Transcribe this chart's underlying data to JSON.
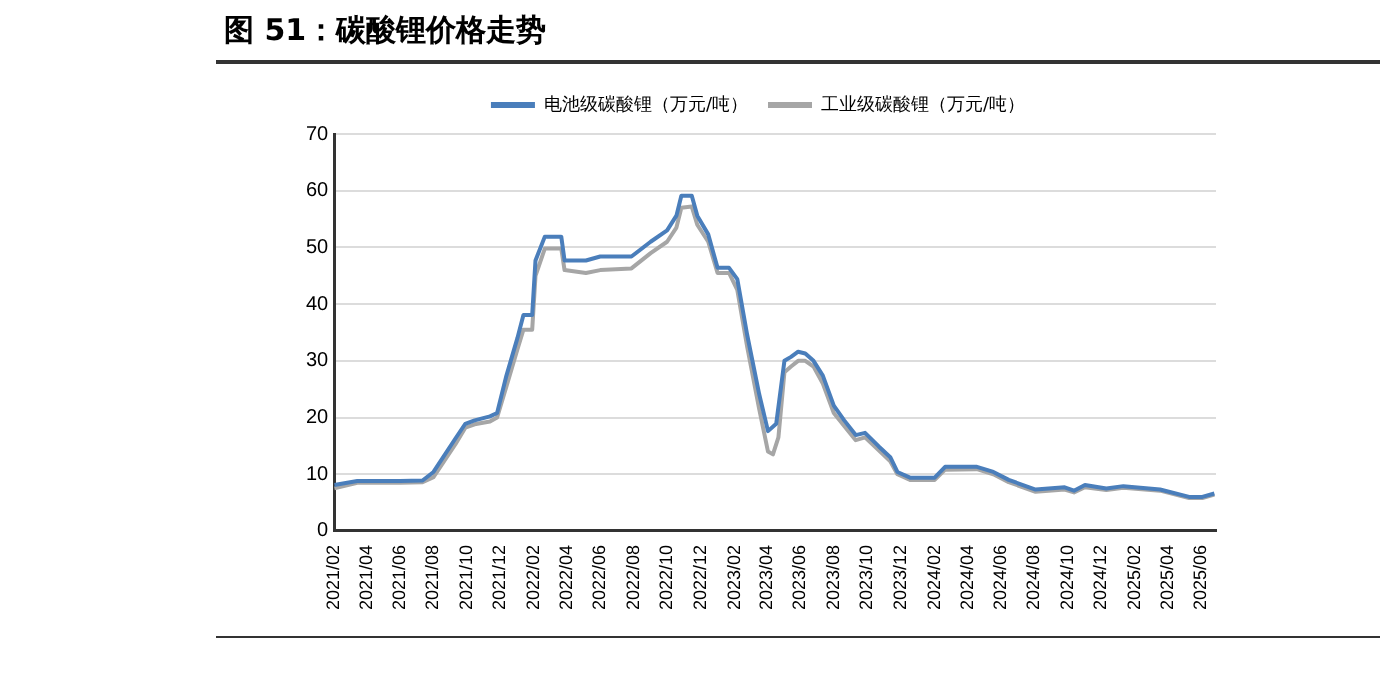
{
  "chart_data": {
    "type": "line",
    "title": "图 51：碳酸锂价格走势",
    "xlim": [
      "2021-02-01",
      "2025-06-28"
    ],
    "xticks": [
      {
        "value": "2021-02-01",
        "label": "2021/02"
      },
      {
        "value": "2021-04-01",
        "label": "2021/04"
      },
      {
        "value": "2021-06-01",
        "label": "2021/06"
      },
      {
        "value": "2021-08-01",
        "label": "2021/08"
      },
      {
        "value": "2021-10-01",
        "label": "2021/10"
      },
      {
        "value": "2021-12-01",
        "label": "2021/12"
      },
      {
        "value": "2022-02-01",
        "label": "2022/02"
      },
      {
        "value": "2022-04-01",
        "label": "2022/04"
      },
      {
        "value": "2022-06-01",
        "label": "2022/06"
      },
      {
        "value": "2022-08-01",
        "label": "2022/08"
      },
      {
        "value": "2022-10-01",
        "label": "2022/10"
      },
      {
        "value": "2022-12-01",
        "label": "2022/12"
      },
      {
        "value": "2023-02-01",
        "label": "2023/02"
      },
      {
        "value": "2023-04-01",
        "label": "2023/04"
      },
      {
        "value": "2023-06-01",
        "label": "2023/06"
      },
      {
        "value": "2023-08-01",
        "label": "2023/08"
      },
      {
        "value": "2023-10-01",
        "label": "2023/10"
      },
      {
        "value": "2023-12-01",
        "label": "2023/12"
      },
      {
        "value": "2024-02-01",
        "label": "2024/02"
      },
      {
        "value": "2024-04-01",
        "label": "2024/04"
      },
      {
        "value": "2024-06-01",
        "label": "2024/06"
      },
      {
        "value": "2024-08-01",
        "label": "2024/08"
      },
      {
        "value": "2024-10-01",
        "label": "2024/10"
      },
      {
        "value": "2024-12-01",
        "label": "2024/12"
      },
      {
        "value": "2025-02-01",
        "label": "2025/02"
      },
      {
        "value": "2025-04-01",
        "label": "2025/04"
      },
      {
        "value": "2025-06-01",
        "label": "2025/06"
      }
    ],
    "ylim": [
      0,
      70
    ],
    "yticks": [
      0,
      10,
      20,
      30,
      40,
      50,
      60,
      70
    ],
    "grid": "y",
    "legend": "top",
    "marker": "none",
    "line_style": "solid",
    "series": [
      {
        "name": "电池级碳酸锂（万元/吨）",
        "color": "#4a7ebb",
        "x": [
          "2021-02-01",
          "2021-03-15",
          "2021-06-01",
          "2021-07-12",
          "2021-08-01",
          "2021-09-10",
          "2021-09-28",
          "2021-10-15",
          "2021-11-12",
          "2021-11-25",
          "2021-12-12",
          "2022-01-01",
          "2022-01-12",
          "2022-01-28",
          "2022-02-03",
          "2022-02-20",
          "2022-03-22",
          "2022-03-28",
          "2022-05-06",
          "2022-06-01",
          "2022-07-28",
          "2022-09-01",
          "2022-10-01",
          "2022-10-18",
          "2022-10-27",
          "2022-11-15",
          "2022-11-25",
          "2022-12-15",
          "2023-01-01",
          "2023-01-22",
          "2023-02-06",
          "2023-02-24",
          "2023-03-18",
          "2023-04-03",
          "2023-04-18",
          "2023-05-03",
          "2023-05-15",
          "2023-05-28",
          "2023-06-10",
          "2023-06-25",
          "2023-07-12",
          "2023-08-01",
          "2023-08-20",
          "2023-09-10",
          "2023-09-27",
          "2023-10-22",
          "2023-11-12",
          "2023-11-25",
          "2023-12-18",
          "2024-02-01",
          "2024-02-20",
          "2024-04-18",
          "2024-05-18",
          "2024-06-15",
          "2024-08-03",
          "2024-09-25",
          "2024-10-12",
          "2024-11-01",
          "2024-12-10",
          "2025-01-10",
          "2025-03-18",
          "2025-05-10",
          "2025-06-03",
          "2025-06-25"
        ],
        "values": [
          8.1,
          8.8,
          8.8,
          8.9,
          10.4,
          16.3,
          18.9,
          19.5,
          20.2,
          20.8,
          27.4,
          34,
          38.1,
          38.1,
          47.7,
          51.9,
          51.9,
          47.7,
          47.7,
          48.4,
          48.4,
          51,
          53,
          55.6,
          59.1,
          59.1,
          55.6,
          52.3,
          46.4,
          46.4,
          44.4,
          34.6,
          24.1,
          17.6,
          18.9,
          30,
          30.7,
          31.6,
          31.3,
          30,
          27.4,
          22.1,
          19.5,
          16.9,
          17.3,
          14.9,
          13,
          10.4,
          9.4,
          9.4,
          11.3,
          11.3,
          10.4,
          9,
          7.3,
          7.7,
          7.1,
          8.1,
          7.5,
          7.9,
          7.3,
          6,
          6,
          6.6
        ]
      },
      {
        "name": "工业级碳酸锂（万元/吨）",
        "color": "#a6a6a6",
        "x": [
          "2021-02-01",
          "2021-03-15",
          "2021-06-01",
          "2021-07-12",
          "2021-08-01",
          "2021-09-10",
          "2021-09-28",
          "2021-10-15",
          "2021-11-12",
          "2021-11-25",
          "2021-12-12",
          "2022-01-01",
          "2022-01-12",
          "2022-01-28",
          "2022-02-03",
          "2022-02-20",
          "2022-03-22",
          "2022-03-28",
          "2022-05-06",
          "2022-06-01",
          "2022-07-28",
          "2022-09-01",
          "2022-10-01",
          "2022-10-18",
          "2022-10-27",
          "2022-11-15",
          "2022-11-25",
          "2022-12-15",
          "2023-01-01",
          "2023-01-22",
          "2023-02-06",
          "2023-02-24",
          "2023-03-18",
          "2023-04-03",
          "2023-04-12",
          "2023-04-22",
          "2023-05-03",
          "2023-05-15",
          "2023-05-28",
          "2023-06-10",
          "2023-06-25",
          "2023-07-12",
          "2023-08-01",
          "2023-08-20",
          "2023-09-10",
          "2023-09-27",
          "2023-10-22",
          "2023-11-12",
          "2023-11-25",
          "2023-12-18",
          "2024-02-01",
          "2024-02-20",
          "2024-04-18",
          "2024-05-18",
          "2024-06-15",
          "2024-08-03",
          "2024-09-25",
          "2024-10-12",
          "2024-11-01",
          "2024-12-10",
          "2025-01-10",
          "2025-03-18",
          "2025-05-10",
          "2025-06-03",
          "2025-06-25"
        ],
        "values": [
          7.5,
          8.5,
          8.5,
          8.6,
          9.5,
          15.3,
          18.2,
          18.8,
          19.3,
          20,
          25.5,
          32,
          35.5,
          35.5,
          45,
          49.8,
          49.8,
          46,
          45.5,
          46,
          46.3,
          49,
          51,
          53.5,
          57,
          57.2,
          54,
          51,
          45.5,
          45.5,
          42.5,
          32.5,
          21.5,
          14,
          13.5,
          16.5,
          28,
          29,
          30,
          30,
          29,
          26,
          20.8,
          18.5,
          16,
          16.5,
          14.2,
          12.3,
          10,
          9,
          9,
          10.8,
          10.9,
          10,
          8.6,
          6.9,
          7.3,
          6.8,
          7.7,
          7.2,
          7.6,
          7.1,
          5.8,
          5.8,
          6.4
        ]
      }
    ]
  }
}
